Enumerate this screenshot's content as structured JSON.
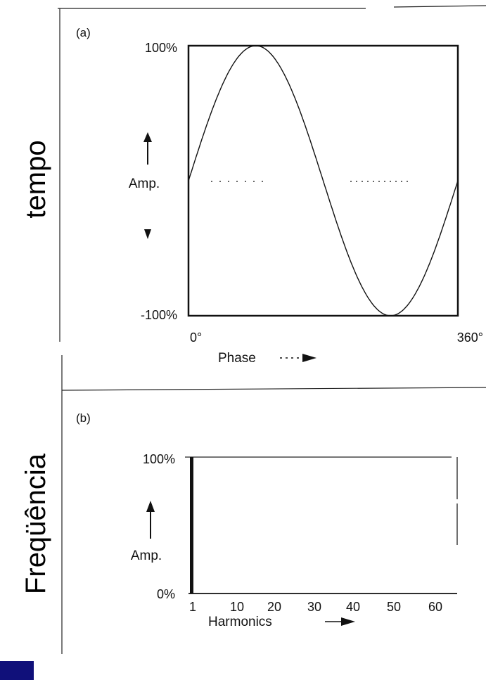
{
  "side_labels": {
    "top": "tempo",
    "bottom": "Freqüência"
  },
  "panels": {
    "a": {
      "label": "(a)",
      "y_top": "100%",
      "y_bottom": "-100%",
      "y_title": "Amp.",
      "x_start": "0°",
      "x_end": "360°",
      "x_title": "Phase"
    },
    "b": {
      "label": "(b)",
      "y_top": "100%",
      "y_bottom": "0%",
      "y_title": "Amp.",
      "x_title": "Harmonics"
    }
  },
  "chart_data": [
    {
      "type": "line",
      "title": "",
      "xlabel": "Phase",
      "ylabel": "Amp.",
      "xlim": [
        0,
        360
      ],
      "ylim": [
        -100,
        100
      ],
      "series": [
        {
          "function": "sine",
          "amplitude": 100,
          "period": 360,
          "x_start": 0,
          "x_end": 360
        }
      ]
    },
    {
      "type": "bar",
      "title": "",
      "xlabel": "Harmonics",
      "ylabel": "Amp.",
      "ylim": [
        0,
        100
      ],
      "categories": [
        "1",
        "10",
        "20",
        "30",
        "40",
        "50",
        "60"
      ],
      "bars": [
        {
          "harmonic": 1,
          "value": 100
        }
      ]
    }
  ],
  "colors": {
    "ink": "#111111",
    "corner": "#10107a"
  }
}
